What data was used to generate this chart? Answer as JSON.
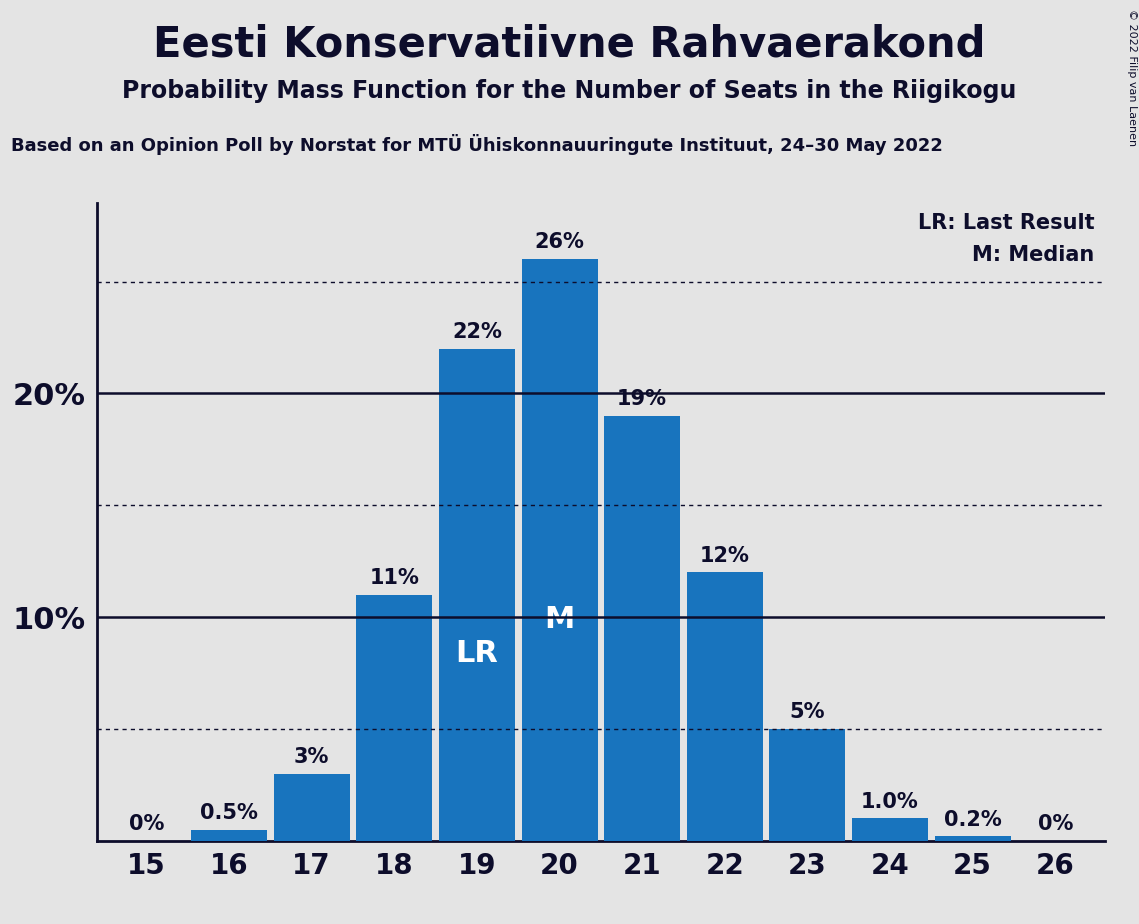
{
  "title": "Eesti Konservatiivne Rahvaerakond",
  "subtitle": "Probability Mass Function for the Number of Seats in the Riigikogu",
  "source": "Based on an Opinion Poll by Norstat for MTÜ Ühiskonnauuringute Instituut, 24–30 May 2022",
  "copyright": "© 2022 Filip van Laenen",
  "seats": [
    15,
    16,
    17,
    18,
    19,
    20,
    21,
    22,
    23,
    24,
    25,
    26
  ],
  "probabilities": [
    0.0,
    0.5,
    3.0,
    11.0,
    22.0,
    26.0,
    19.0,
    12.0,
    5.0,
    1.0,
    0.2,
    0.0
  ],
  "bar_labels": [
    "0%",
    "0.5%",
    "3%",
    "11%",
    "22%",
    "26%",
    "19%",
    "12%",
    "5%",
    "1.0%",
    "0.2%",
    "0%"
  ],
  "bar_color": "#1874BE",
  "background_color": "#E4E4E4",
  "lr_seat": 19,
  "median_seat": 20,
  "solid_lines": [
    10,
    20
  ],
  "dotted_lines": [
    5,
    15,
    25
  ],
  "legend_lr": "LR: Last Result",
  "legend_m": "M: Median",
  "ylim": [
    0,
    28.5
  ],
  "xlim_left": 14.4,
  "xlim_right": 26.6,
  "bar_width": 0.92,
  "title_fontsize": 30,
  "subtitle_fontsize": 17,
  "source_fontsize": 13,
  "ytick_fontsize": 22,
  "xtick_fontsize": 20,
  "bar_label_fontsize": 15,
  "bar_inner_fontsize": 22,
  "legend_fontsize": 15
}
